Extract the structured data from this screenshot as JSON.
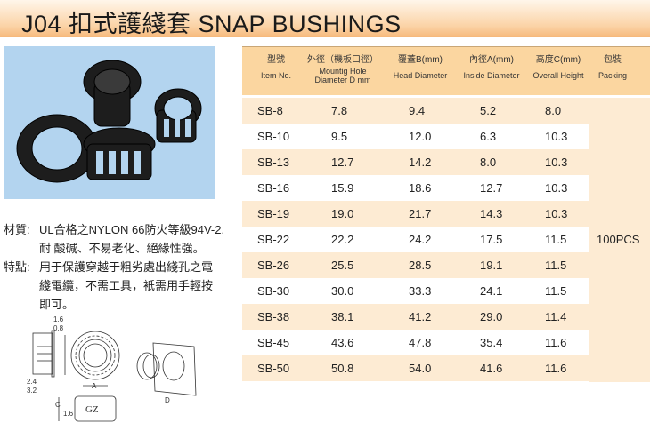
{
  "title": "J04  扣式護綫套  SNAP BUSHINGS",
  "notes": [
    {
      "label": "材質:",
      "lines": [
        "UL合格之NYLON 66防火等級94V-2,",
        "耐 酸碱、不易老化、絕緣性強。"
      ]
    },
    {
      "label": "特點:",
      "lines": [
        "用于保護穿越于粗劣處出綫孔之電",
        "綫電纜，不需工具，衹需用手輕按",
        "即可。"
      ]
    }
  ],
  "drawing": {
    "dims": [
      "1.6",
      "0.8",
      "2.4",
      "3.2",
      "A",
      "C",
      "1.6",
      "D"
    ],
    "mark": "GZ"
  },
  "table": {
    "headers": [
      {
        "zh": "型號",
        "en": "Item No."
      },
      {
        "zh": "外徑（機板口徑）",
        "en": "Mountig  Hole\nDiameter D mm"
      },
      {
        "zh": "覆蓋B(mm)",
        "en": "Head Diameter"
      },
      {
        "zh": "內徑A(mm)",
        "en": "Inside Diameter"
      },
      {
        "zh": "高度C(mm)",
        "en": "Overall Height"
      },
      {
        "zh": "包裝",
        "en": "Packing"
      }
    ],
    "rows": [
      [
        "SB-8",
        "7.8",
        "9.4",
        "5.2",
        "8.0"
      ],
      [
        "SB-10",
        "9.5",
        "12.0",
        "6.3",
        "10.3"
      ],
      [
        "SB-13",
        "12.7",
        "14.2",
        "8.0",
        "10.3"
      ],
      [
        "SB-16",
        "15.9",
        "18.6",
        "12.7",
        "10.3"
      ],
      [
        "SB-19",
        "19.0",
        "21.7",
        "14.3",
        "10.3"
      ],
      [
        "SB-22",
        "22.2",
        "24.2",
        "17.5",
        "11.5"
      ],
      [
        "SB-26",
        "25.5",
        "28.5",
        "19.1",
        "11.5"
      ],
      [
        "SB-30",
        "30.0",
        "33.3",
        "24.1",
        "11.5"
      ],
      [
        "SB-38",
        "38.1",
        "41.2",
        "29.0",
        "11.4"
      ],
      [
        "SB-45",
        "43.6",
        "47.8",
        "35.4",
        "11.6"
      ],
      [
        "SB-50",
        "50.8",
        "54.0",
        "41.6",
        "11.6"
      ]
    ],
    "packing": "100PCS"
  }
}
